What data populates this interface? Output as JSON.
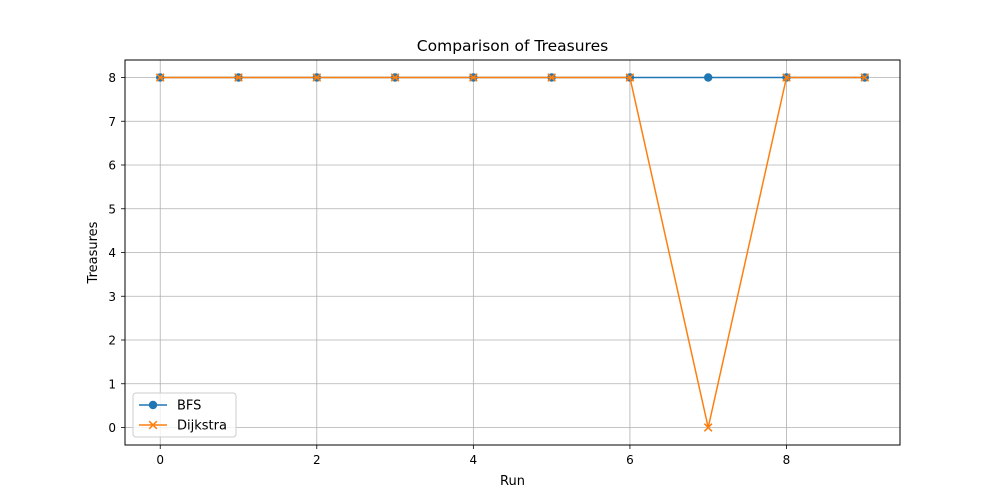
{
  "chart_data": {
    "type": "line",
    "title": "Comparison of Treasures",
    "xlabel": "Run",
    "ylabel": "Treasures",
    "x": [
      0,
      1,
      2,
      3,
      4,
      5,
      6,
      7,
      8,
      9
    ],
    "xlim": [
      -0.45,
      9.45
    ],
    "ylim": [
      -0.4,
      8.4
    ],
    "xticks": [
      0,
      2,
      4,
      6,
      8
    ],
    "yticks": [
      0,
      1,
      2,
      3,
      4,
      5,
      6,
      7,
      8
    ],
    "grid": true,
    "legend_position": "lower-left",
    "series": [
      {
        "name": "BFS",
        "values": [
          8,
          8,
          8,
          8,
          8,
          8,
          8,
          8,
          8,
          8
        ],
        "color": "#1f77b4",
        "marker": "circle"
      },
      {
        "name": "Dijkstra",
        "values": [
          8,
          8,
          8,
          8,
          8,
          8,
          8,
          0,
          8,
          8
        ],
        "color": "#ff7f0e",
        "marker": "x"
      }
    ]
  }
}
